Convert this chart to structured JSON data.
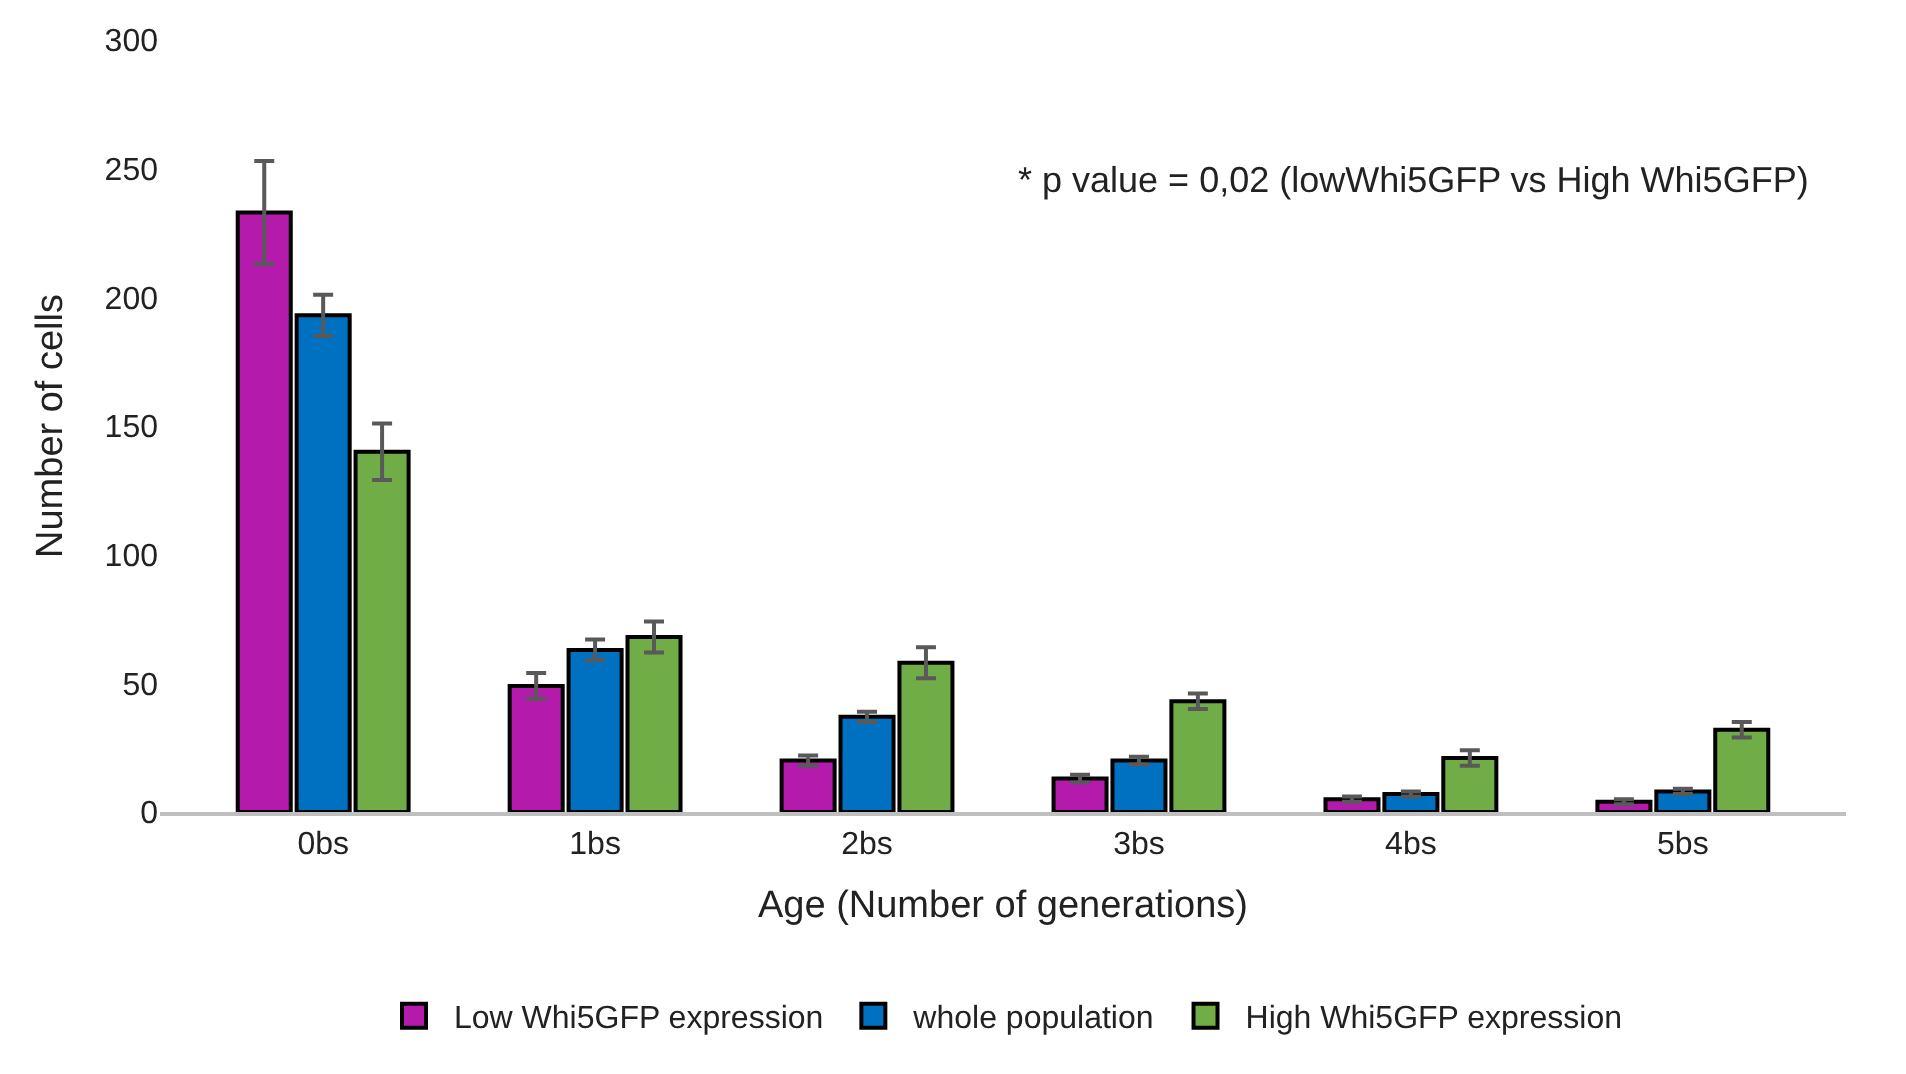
{
  "chart_data": {
    "type": "bar",
    "xlabel": "Age (Number of generations)",
    "ylabel": "Number of cells",
    "categories": [
      "0bs",
      "1bs",
      "2bs",
      "3bs",
      "4bs",
      "5bs"
    ],
    "series": [
      {
        "name": "Low Whi5GFP expression",
        "color": "#b41aac",
        "values": [
          233,
          49,
          20,
          13,
          5,
          4
        ],
        "errors": [
          20,
          5,
          2,
          1.5,
          1,
          1
        ]
      },
      {
        "name": "whole population",
        "color": "#0070c0",
        "values": [
          193,
          63,
          37,
          20,
          7,
          8
        ],
        "errors": [
          8,
          4,
          2,
          1.5,
          1,
          1
        ]
      },
      {
        "name": "High Whi5GFP expression",
        "color": "#70ad47",
        "values": [
          140,
          68,
          58,
          43,
          21,
          32
        ],
        "errors": [
          11,
          6,
          6,
          3,
          3,
          3
        ]
      }
    ],
    "ylim": [
      0,
      300
    ],
    "yticks": [
      0,
      50,
      100,
      150,
      200,
      250,
      300
    ],
    "legend": "bottom",
    "annotations": [
      "* p value = 0,02 (lowWhi5GFP vs High Whi5GFP)"
    ]
  }
}
